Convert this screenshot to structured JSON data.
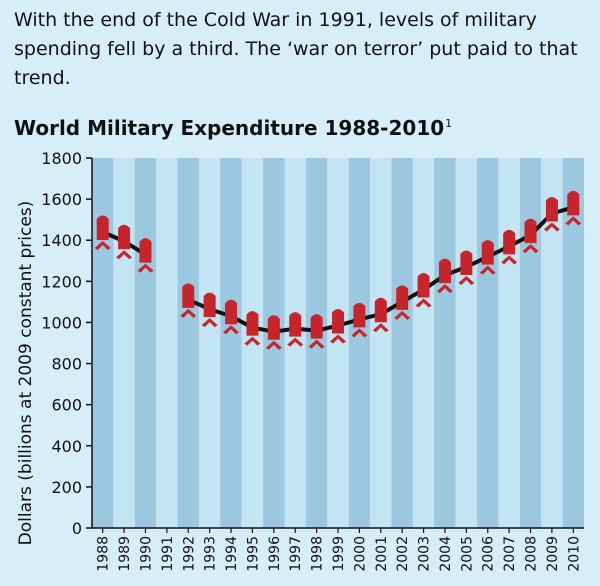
{
  "intro_text": "With the end of the Cold War in 1991, levels of military spending fell by a third. The ‘war on terror’ put paid to that trend.",
  "colors": {
    "background": "#d6eef8",
    "band_light": "#c3e4f3",
    "band_dark": "#9cc8df",
    "marker": "#c8242b",
    "line": "#111111"
  },
  "chart_data": {
    "type": "line",
    "title": "World Military Expenditure 1988-2010",
    "title_footnote": "1",
    "ylabel": "Dollars (billions at 2009 constant prices)",
    "xlabel": "",
    "ylim": [
      0,
      1800
    ],
    "yticks": [
      0,
      200,
      400,
      600,
      800,
      1000,
      1200,
      1400,
      1600,
      1800
    ],
    "categories": [
      "1988",
      "1989",
      "1990",
      "1991",
      "1992",
      "1993",
      "1994",
      "1995",
      "1996",
      "1997",
      "1998",
      "1999",
      "2000",
      "2001",
      "2002",
      "2003",
      "2004",
      "2005",
      "2006",
      "2007",
      "2008",
      "2009",
      "2010"
    ],
    "series": [
      {
        "values": [
          1440,
          1395,
          1330,
          null,
          1110,
          1065,
          1030,
          975,
          955,
          970,
          960,
          985,
          1015,
          1040,
          1100,
          1160,
          1230,
          1270,
          1320,
          1370,
          1425,
          1530,
          1560
        ]
      }
    ],
    "grid": "alternating vertical bands",
    "marker": "red bomb icon"
  }
}
